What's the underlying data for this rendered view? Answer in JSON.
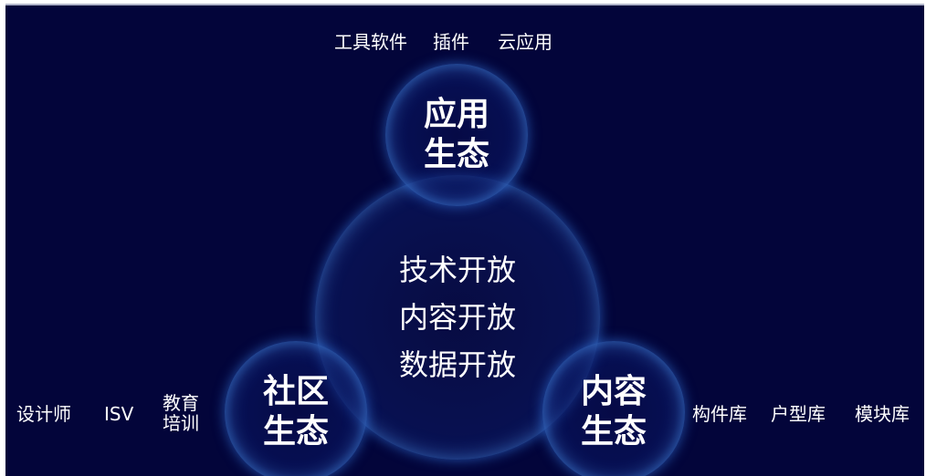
{
  "center": {
    "lines": [
      "技术开放",
      "内容开放",
      "数据开放"
    ]
  },
  "app_ecosystem": {
    "line1": "应用",
    "line2": "生态",
    "tags": [
      "工具软件",
      "插件",
      "云应用"
    ]
  },
  "community_ecosystem": {
    "line1": "社区",
    "line2": "生态",
    "tags": [
      "设计师",
      "ISV"
    ],
    "stacked_tag": [
      "教育",
      "培训"
    ]
  },
  "content_ecosystem": {
    "line1": "内容",
    "line2": "生态",
    "tags": [
      "构件库",
      "户型库",
      "模块库"
    ]
  },
  "colors": {
    "background": "#03053a",
    "bubble_edge": "#8ccfff",
    "text": "#ffffff"
  }
}
